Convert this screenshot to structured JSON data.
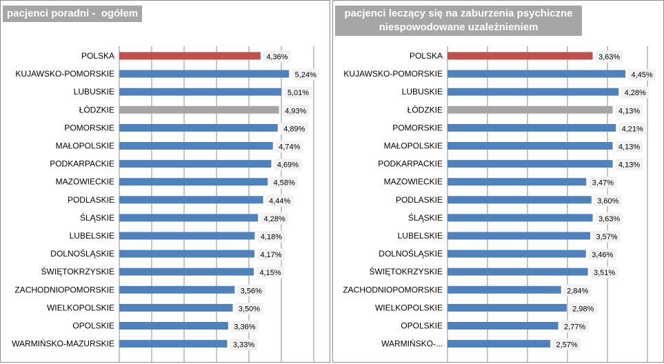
{
  "charts": [
    {
      "title": "pacjenci poradni -  ogółem",
      "chart_data": {
        "type": "bar",
        "orientation": "horizontal",
        "categories": [
          "POLSKA",
          "KUJAWSKO-POMORSKIE",
          "LUBUSKIE",
          "ŁÓDZKIE",
          "POMORSKIE",
          "MAŁOPOLSKIE",
          "PODKARPACKIE",
          "MAZOWIECKIE",
          "PODLASKIE",
          "ŚLĄSKIE",
          "LUBELSKIE",
          "DOLNOŚLĄSKIE",
          "ŚWIĘTOKRZYSKIE",
          "ZACHODNIOPOMORSKIE",
          "WIELKOPOLSKIE",
          "OPOLSKIE",
          "WARMIŃSKO-MAZURSKIE"
        ],
        "values": [
          4.36,
          5.24,
          5.01,
          4.93,
          4.89,
          4.74,
          4.69,
          4.58,
          4.44,
          4.28,
          4.18,
          4.17,
          4.15,
          3.56,
          3.5,
          3.36,
          3.33
        ],
        "data_labels": [
          "4,36%",
          "5,24%",
          "5,01%",
          "4,93%",
          "4,89%",
          "4,74%",
          "4,69%",
          "4,58%",
          "4,44%",
          "4,28%",
          "4,18%",
          "4,17%",
          "4,15%",
          "3,56%",
          "3,50%",
          "3,36%",
          "3,33%"
        ],
        "highlight": {
          "POLSKA": "#c0504d",
          "ŁÓDZKIE": "#a6a6a6"
        },
        "bar_color": "#4f81bd",
        "xlim": [
          0,
          6
        ],
        "grid": "vertical"
      }
    },
    {
      "title": "pacjenci leczący się na zaburzenia psychiczne niespowodowane uzależnieniem",
      "chart_data": {
        "type": "bar",
        "orientation": "horizontal",
        "categories": [
          "POLSKA",
          "KUJAWSKO-POMORSKIE",
          "LUBUSKIE",
          "ŁÓDZKIE",
          "POMORSKIE",
          "MAŁOPOLSKIE",
          "PODKARPACKIE",
          "MAZOWIECKIE",
          "PODLASKIE",
          "ŚLĄSKIE",
          "LUBELSKIE",
          "DOLNOŚLĄSKIE",
          "ŚWIĘTOKRZYSKIE",
          "ZACHODNIOPOMORSKIE",
          "WIELKOPOLSKIE",
          "OPOLSKIE",
          "WARMIŃSKO-..."
        ],
        "values": [
          3.63,
          4.45,
          4.28,
          4.13,
          4.21,
          4.13,
          4.13,
          3.47,
          3.6,
          3.63,
          3.57,
          3.46,
          3.51,
          2.84,
          2.98,
          2.77,
          2.57
        ],
        "data_labels": [
          "3,63%",
          "4,45%",
          "4,28%",
          "4,13%",
          "4,21%",
          "4,13%",
          "4,13%",
          "3,47%",
          "3,60%",
          "3,63%",
          "3,57%",
          "3,46%",
          "3,51%",
          "2,84%",
          "2,98%",
          "2,77%",
          "2,57%"
        ],
        "highlight": {
          "POLSKA": "#c0504d",
          "ŁÓDZKIE": "#a6a6a6"
        },
        "bar_color": "#4f81bd",
        "xlim": [
          0,
          5
        ],
        "grid": "vertical"
      }
    }
  ]
}
